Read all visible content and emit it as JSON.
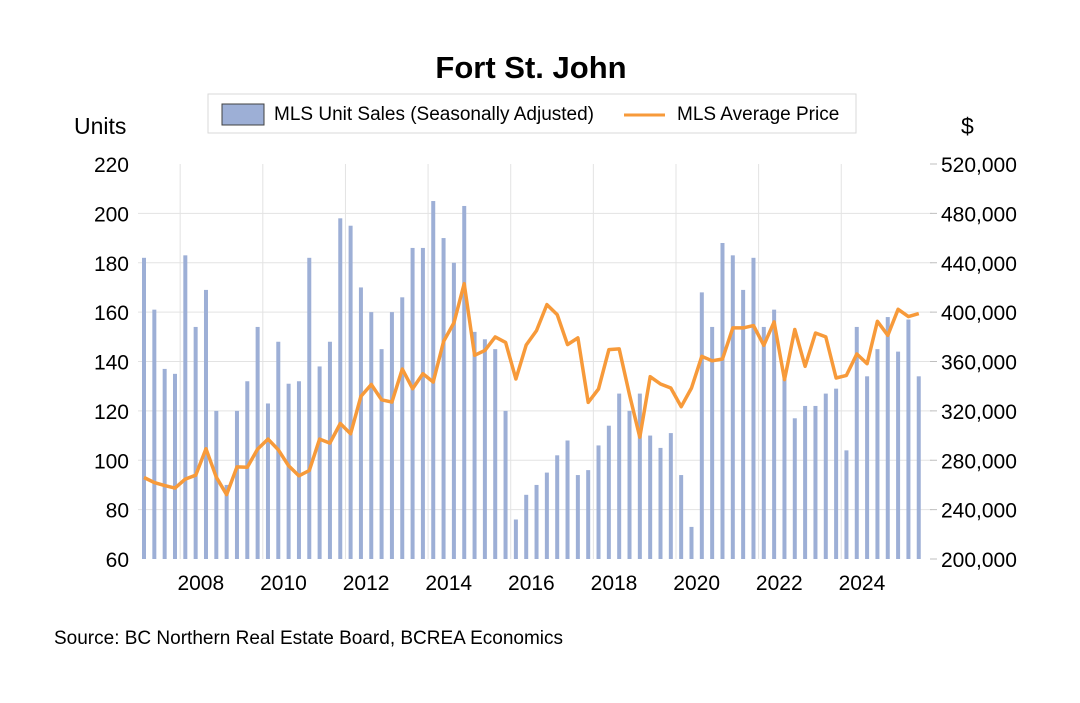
{
  "chart_data": {
    "type": "bar+line",
    "title": "Fort St. John",
    "left_axis_label": "Units",
    "right_axis_label": "$",
    "source": "Source:  BC Northern Real Estate Board, BCREA Economics",
    "x_period_start": "2007 Q1",
    "x_frequency": "quarterly",
    "x_tick_labels": [
      "2008",
      "2010",
      "2012",
      "2014",
      "2016",
      "2018",
      "2020",
      "2022",
      "2024"
    ],
    "x_tick_years": [
      2008,
      2010,
      2012,
      2014,
      2016,
      2018,
      2020,
      2022,
      2024
    ],
    "first_year": 2007,
    "y_left": {
      "min": 60,
      "max": 220,
      "step": 20,
      "ticks": [
        "60",
        "80",
        "100",
        "120",
        "140",
        "160",
        "180",
        "200",
        "220"
      ]
    },
    "y_right": {
      "min": 200000,
      "max": 520000,
      "step": 40000,
      "ticks": [
        "200,000",
        "240,000",
        "280,000",
        "320,000",
        "360,000",
        "400,000",
        "440,000",
        "480,000",
        "520,000"
      ]
    },
    "grid": true,
    "legend": {
      "position": "top",
      "items": [
        "MLS Unit Sales (Seasonally Adjusted)",
        "MLS Average Price"
      ]
    },
    "series": [
      {
        "name": "MLS Unit Sales (Seasonally Adjusted)",
        "type": "bar",
        "axis": "left",
        "color": "#9dafd6",
        "values": [
          182,
          161,
          137,
          135,
          183,
          154,
          169,
          120,
          90,
          120,
          132,
          154,
          123,
          148,
          131,
          132,
          182,
          138,
          148,
          198,
          195,
          170,
          160,
          145,
          160,
          166,
          186,
          186,
          205,
          190,
          180,
          203,
          152,
          149,
          145,
          120,
          76,
          86,
          90,
          95,
          102,
          108,
          94,
          96,
          106,
          114,
          127,
          120,
          127,
          110,
          105,
          111,
          94,
          73,
          168,
          154,
          188,
          183,
          169,
          182,
          154,
          161,
          135,
          117,
          122,
          122,
          127,
          129,
          104,
          154,
          134,
          145,
          158,
          144,
          157,
          134
        ]
      },
      {
        "name": "MLS Average Price",
        "type": "line",
        "axis": "right",
        "color": "#f79a3a",
        "values": [
          266000,
          261900,
          259500,
          257400,
          264700,
          267900,
          289300,
          266300,
          252200,
          274600,
          274400,
          289000,
          297100,
          288500,
          275500,
          267400,
          271700,
          297100,
          293900,
          309800,
          301400,
          331700,
          341400,
          329000,
          327100,
          353900,
          338000,
          350100,
          343400,
          376300,
          391300,
          423000,
          365000,
          369000,
          379900,
          375500,
          345800,
          373400,
          385000,
          406100,
          398000,
          373700,
          379100,
          326900,
          337700,
          369600,
          370200,
          333100,
          298700,
          347700,
          341800,
          338500,
          323400,
          338500,
          364200,
          360600,
          362000,
          387200,
          387200,
          389100,
          373100,
          392100,
          345300,
          385900,
          356100,
          383100,
          379900,
          346600,
          348700,
          366100,
          358200,
          392600,
          381200,
          402300,
          396400,
          398800
        ]
      }
    ]
  }
}
